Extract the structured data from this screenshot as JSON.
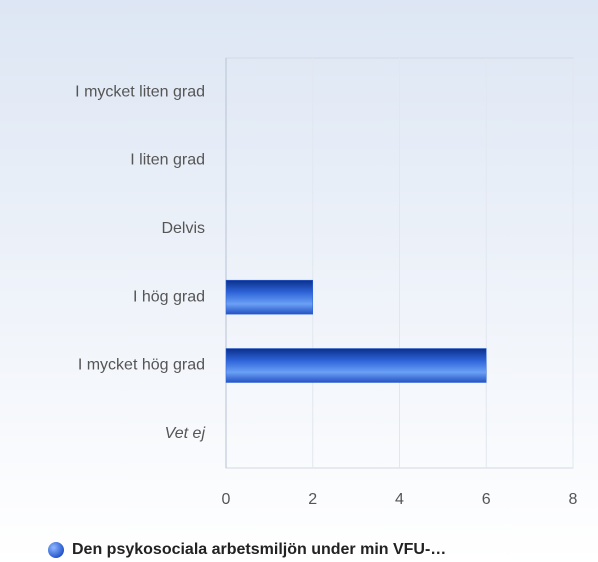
{
  "chart_data": {
    "type": "hbar",
    "categories": [
      "I mycket liten grad",
      "I liten grad",
      "Delvis",
      "I hög grad",
      "I mycket hög grad",
      "Vet ej"
    ],
    "series": [
      {
        "name": "Den psykosociala arbetsmiljön under min VFU-…",
        "color": "#2d63d8",
        "values": [
          0,
          0,
          0,
          2,
          6,
          0
        ]
      }
    ],
    "xlim": [
      0,
      8
    ],
    "xticks": [
      0,
      2,
      4,
      6,
      8
    ],
    "grid": true
  }
}
